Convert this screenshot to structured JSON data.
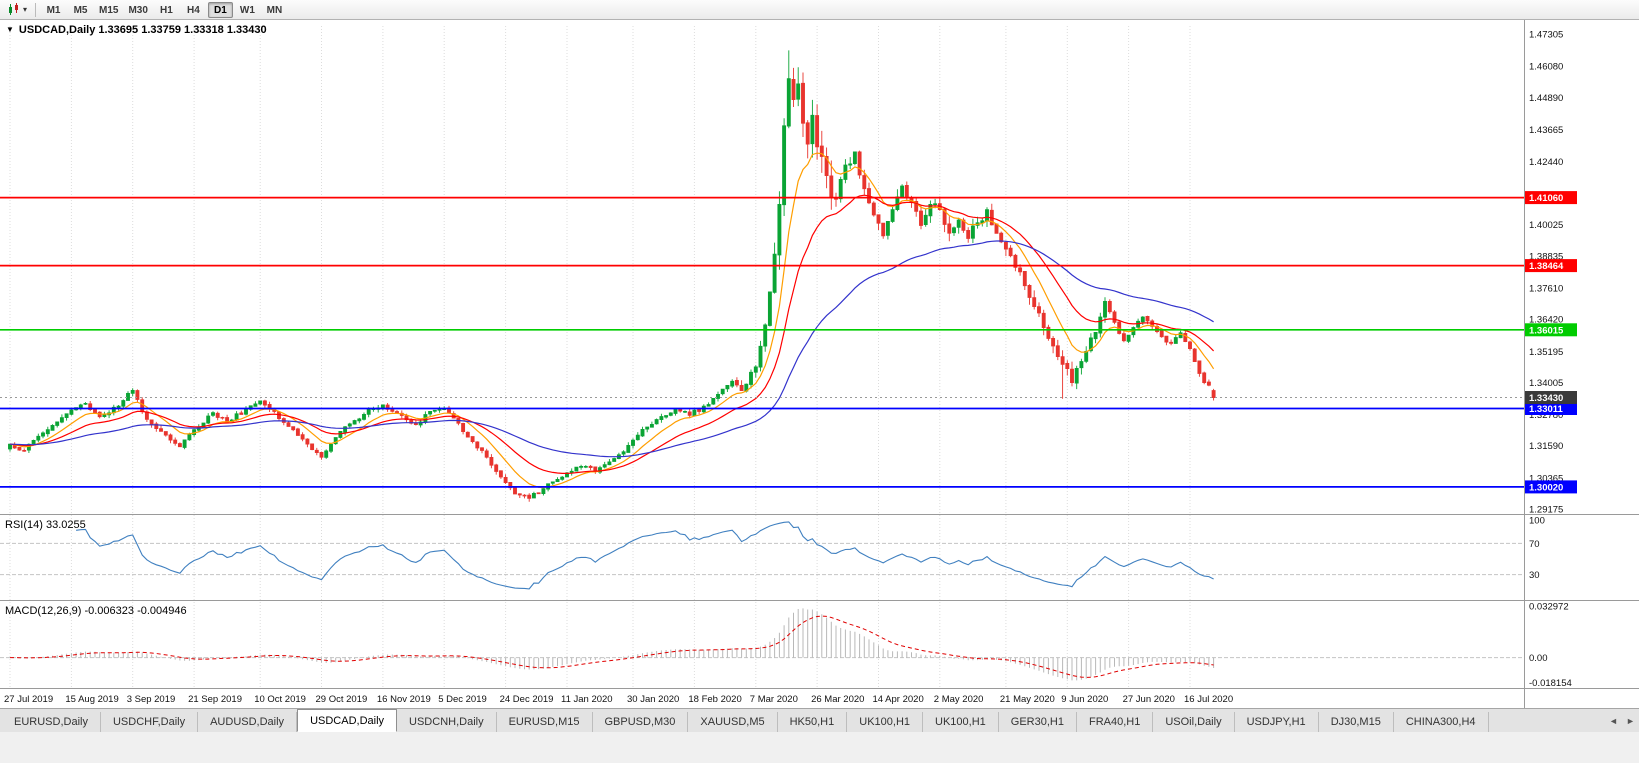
{
  "icons": {
    "collapse_arrow": "▼",
    "dropdown_caret": "▾",
    "tab_scroll_left": "◄",
    "tab_scroll_right": "►",
    "chart_type_icon": "candlestick-chart-icon"
  },
  "toolbar": {
    "timeframes": [
      "M1",
      "M5",
      "M15",
      "M30",
      "H1",
      "H4",
      "D1",
      "W1",
      "MN"
    ],
    "active_timeframe": "D1"
  },
  "chart": {
    "symbol_title": "USDCAD,Daily",
    "title_text": "USDCAD,Daily 1.33695 1.33759 1.33318 1.33430",
    "rsi_label": "RSI(14) 33.0255",
    "macd_label": "MACD(12,26,9) -0.006323 -0.004946"
  },
  "chart_data": {
    "type": "candlestick",
    "symbol": "USDCAD",
    "timeframe": "Daily",
    "quote": {
      "open": 1.33695,
      "high": 1.33759,
      "low": 1.33318,
      "close": 1.3343
    },
    "x_tick_labels": [
      "27 Jul 2019",
      "15 Aug 2019",
      "3 Sep 2019",
      "21 Sep 2019",
      "10 Oct 2019",
      "29 Oct 2019",
      "16 Nov 2019",
      "5 Dec 2019",
      "24 Dec 2019",
      "11 Jan 2020",
      "30 Jan 2020",
      "18 Feb 2020",
      "7 Mar 2020",
      "26 Mar 2020",
      "14 Apr 2020",
      "2 May 2020",
      "21 May 2020",
      "9 Jun 2020",
      "27 Jun 2020",
      "16 Jul 2020"
    ],
    "price_axis": {
      "top_value": 1.47305,
      "bottom_value": 1.29175,
      "tick_labels": [
        "1.47305",
        "1.46080",
        "1.44890",
        "1.43665",
        "1.42440",
        "1.40025",
        "1.38835",
        "1.37610",
        "1.36420",
        "1.35195",
        "1.34005",
        "1.32780",
        "1.31590",
        "1.30365",
        "1.29175"
      ]
    },
    "horizontal_lines": [
      {
        "value": 1.4106,
        "label": "1.41060",
        "color": "#FF0000"
      },
      {
        "value": 1.38464,
        "label": "1.38464",
        "color": "#FF0000"
      },
      {
        "value": 1.36015,
        "label": "1.36015",
        "color": "#00CC00"
      },
      {
        "value": 1.33011,
        "label": "1.33011",
        "color": "#0000FF"
      },
      {
        "value": 1.3002,
        "label": "1.30020",
        "color": "#0000FF"
      }
    ],
    "current_price": {
      "value": 1.3343,
      "label": "1.33430",
      "color": "#3A3A3A"
    },
    "candles": {
      "count": 256,
      "up_color": "#0AA435",
      "down_color": "#E8352E",
      "anchors": [
        [
          0,
          1.3165
        ],
        [
          3,
          1.314
        ],
        [
          6,
          1.3195
        ],
        [
          10,
          1.325
        ],
        [
          13,
          1.3295
        ],
        [
          16,
          1.332
        ],
        [
          19,
          1.327
        ],
        [
          23,
          1.331
        ],
        [
          26,
          1.337
        ],
        [
          29,
          1.326
        ],
        [
          33,
          1.32
        ],
        [
          36,
          1.3155
        ],
        [
          39,
          1.322
        ],
        [
          43,
          1.3285
        ],
        [
          46,
          1.325
        ],
        [
          50,
          1.33
        ],
        [
          53,
          1.333
        ],
        [
          56,
          1.329
        ],
        [
          60,
          1.322
        ],
        [
          63,
          1.3165
        ],
        [
          66,
          1.3115
        ],
        [
          69,
          1.319
        ],
        [
          73,
          1.3255
        ],
        [
          76,
          1.33
        ],
        [
          79,
          1.3315
        ],
        [
          83,
          1.3275
        ],
        [
          86,
          1.324
        ],
        [
          89,
          1.329
        ],
        [
          92,
          1.33
        ],
        [
          95,
          1.3245
        ],
        [
          98,
          1.3175
        ],
        [
          101,
          1.3115
        ],
        [
          104,
          1.304
        ],
        [
          107,
          1.2975
        ],
        [
          110,
          1.2958
        ],
        [
          113,
          1.2995
        ],
        [
          116,
          1.303
        ],
        [
          118,
          1.3055
        ],
        [
          121,
          1.308
        ],
        [
          124,
          1.306
        ],
        [
          128,
          1.311
        ],
        [
          132,
          1.318
        ],
        [
          135,
          1.323
        ],
        [
          138,
          1.327
        ],
        [
          141,
          1.33
        ],
        [
          144,
          1.3275
        ],
        [
          147,
          1.331
        ],
        [
          150,
          1.3355
        ],
        [
          153,
          1.3405
        ],
        [
          155,
          1.337
        ],
        [
          158,
          1.346
        ],
        [
          160,
          1.362
        ],
        [
          162,
          1.389
        ],
        [
          163,
          1.408
        ],
        [
          164,
          1.438
        ],
        [
          165,
          1.456
        ],
        [
          166,
          1.448
        ],
        [
          167,
          1.454
        ],
        [
          168,
          1.439
        ],
        [
          169,
          1.431
        ],
        [
          170,
          1.442
        ],
        [
          171,
          1.43
        ],
        [
          173,
          1.419
        ],
        [
          175,
          1.41
        ],
        [
          177,
          1.423
        ],
        [
          179,
          1.428
        ],
        [
          181,
          1.414
        ],
        [
          183,
          1.404
        ],
        [
          185,
          1.396
        ],
        [
          187,
          1.406
        ],
        [
          189,
          1.415
        ],
        [
          191,
          1.409
        ],
        [
          193,
          1.4
        ],
        [
          195,
          1.408
        ],
        [
          197,
          1.406
        ],
        [
          199,
          1.397
        ],
        [
          201,
          1.402
        ],
        [
          203,
          1.395
        ],
        [
          205,
          1.401
        ],
        [
          207,
          1.406
        ],
        [
          209,
          1.397
        ],
        [
          211,
          1.391
        ],
        [
          213,
          1.384
        ],
        [
          215,
          1.377
        ],
        [
          217,
          1.369
        ],
        [
          219,
          1.361
        ],
        [
          221,
          1.354
        ],
        [
          223,
          1.347
        ],
        [
          225,
          1.34
        ],
        [
          227,
          1.348
        ],
        [
          229,
          1.357
        ],
        [
          231,
          1.365
        ],
        [
          232,
          1.371
        ],
        [
          234,
          1.363
        ],
        [
          236,
          1.356
        ],
        [
          238,
          1.361
        ],
        [
          240,
          1.365
        ],
        [
          242,
          1.3615
        ],
        [
          244,
          1.3575
        ],
        [
          246,
          1.355
        ],
        [
          248,
          1.359
        ],
        [
          250,
          1.353
        ],
        [
          251,
          1.348
        ],
        [
          252,
          1.3435
        ],
        [
          253,
          1.34
        ],
        [
          254,
          1.339
        ],
        [
          255,
          1.3343
        ]
      ],
      "spikes": [
        {
          "i": 165,
          "high": 1.4668
        },
        {
          "i": 110,
          "low": 1.2952
        },
        {
          "i": 223,
          "low": 1.3338
        }
      ]
    },
    "moving_averages": [
      {
        "period": 9,
        "type": "ema",
        "color": "#FF9E00"
      },
      {
        "period": 21,
        "type": "ema",
        "color": "#FF0000"
      },
      {
        "period": 55,
        "type": "ema",
        "color": "#3333CC"
      }
    ],
    "rsi": {
      "period": 14,
      "value": 33.0255,
      "levels": [
        100,
        70,
        30
      ],
      "dashed_levels": [
        70,
        30
      ],
      "line_color": "#4080C0"
    },
    "macd": {
      "fast": 12,
      "slow": 26,
      "signal": 9,
      "value": -0.006323,
      "signal_value": -0.004946,
      "axis_labels": [
        "0.032972",
        "0.00",
        "-0.018154"
      ],
      "axis_max": 0.032972,
      "axis_min": -0.018154,
      "hist_color": "#B8B8B8",
      "signal_color": "#E00000"
    },
    "legend_position": "none",
    "grid": "vertical-dotted"
  },
  "tabs": {
    "items": [
      "EURUSD,Daily",
      "USDCHF,Daily",
      "AUDUSD,Daily",
      "USDCAD,Daily",
      "USDCNH,Daily",
      "EURUSD,M15",
      "GBPUSD,M30",
      "XAUUSD,M5",
      "HK50,H1",
      "UK100,H1",
      "UK100,H1",
      "GER30,H1",
      "FRA40,H1",
      "USOil,Daily",
      "USDJPY,H1",
      "DJ30,M15",
      "CHINA300,H4"
    ],
    "active": "USDCAD,Daily"
  }
}
